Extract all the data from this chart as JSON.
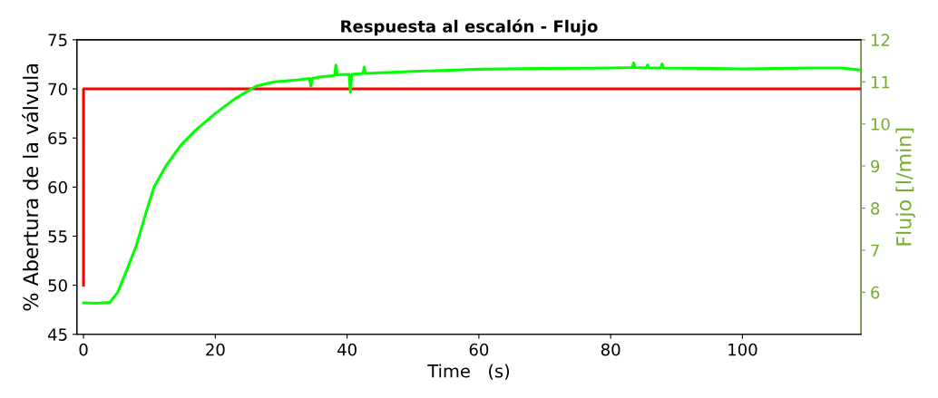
{
  "chart_data": {
    "type": "line",
    "title": "Respuesta al escalón - Flujo",
    "xlabel": "Time   (s)",
    "ylabel": "% Abertura de la válvula",
    "y2label": "Flujo [l/min]",
    "xlim": [
      -1,
      118
    ],
    "xticks": [
      0,
      20,
      40,
      60,
      80,
      100
    ],
    "ylim": [
      45,
      75
    ],
    "yticks": [
      45,
      50,
      55,
      60,
      65,
      70,
      75
    ],
    "y2lim": [
      5,
      12
    ],
    "y2ticks": [
      6,
      7,
      8,
      9,
      10,
      11,
      12
    ],
    "grid": false,
    "legend": false,
    "line_style": "solid",
    "marker": "none",
    "series": [
      {
        "color": "#ff0000",
        "axis": "y",
        "x": [
          0,
          0,
          118
        ],
        "values": [
          50,
          70,
          70
        ]
      },
      {
        "color": "#00ff00",
        "axis": "y2",
        "x": [
          0,
          2,
          4,
          5.2,
          6.5,
          8,
          9.5,
          10.7,
          12.5,
          14.8,
          17,
          20,
          23,
          26.2,
          29,
          32.7,
          34.3,
          34.5,
          34.7,
          36,
          38.1,
          38.3,
          38.5,
          40.3,
          40.5,
          40.7,
          42.4,
          42.6,
          42.8,
          50,
          60,
          70,
          80,
          83.3,
          83.5,
          83.7,
          85.4,
          85.6,
          85.8,
          87.6,
          87.8,
          88,
          95,
          100,
          110,
          115,
          118
        ],
        "values": [
          5.75,
          5.74,
          5.76,
          6.0,
          6.5,
          7.1,
          7.9,
          8.5,
          9.0,
          9.5,
          9.85,
          10.25,
          10.6,
          10.9,
          11.0,
          11.05,
          11.08,
          10.9,
          11.08,
          11.12,
          11.15,
          11.4,
          11.17,
          11.18,
          10.75,
          11.18,
          11.2,
          11.35,
          11.2,
          11.25,
          11.3,
          11.32,
          11.33,
          11.34,
          11.45,
          11.34,
          11.33,
          11.4,
          11.33,
          11.33,
          11.43,
          11.33,
          11.32,
          11.31,
          11.33,
          11.33,
          11.28
        ]
      }
    ]
  }
}
